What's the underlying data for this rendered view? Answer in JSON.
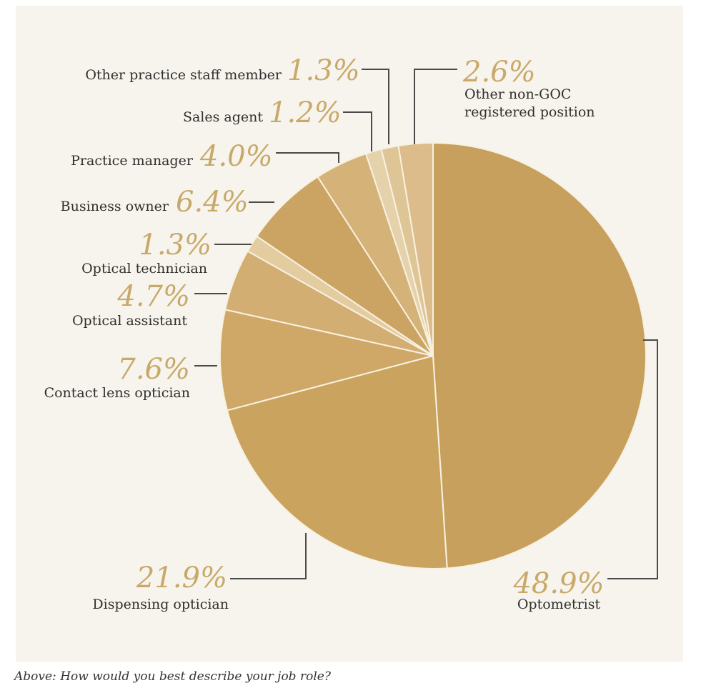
{
  "chart_data": {
    "type": "pie",
    "title": "",
    "slices": [
      {
        "label": "Optometrist",
        "value": 48.9,
        "value_label": "48.9%",
        "color": "#c6a05c"
      },
      {
        "label": "Dispensing optician",
        "value": 21.9,
        "value_label": "21.9%",
        "color": "#caa35f"
      },
      {
        "label": "Contact lens optician",
        "value": 7.6,
        "value_label": "7.6%",
        "color": "#cfa868"
      },
      {
        "label": "Optical assistant",
        "value": 4.7,
        "value_label": "4.7%",
        "color": "#d3ae72"
      },
      {
        "label": "Optical technician",
        "value": 1.3,
        "value_label": "1.3%",
        "color": "#e2cca0"
      },
      {
        "label": "Business owner",
        "value": 6.4,
        "value_label": "6.4%",
        "color": "#cba464"
      },
      {
        "label": "Practice manager",
        "value": 4.0,
        "value_label": "4.0%",
        "color": "#d5b277"
      },
      {
        "label": "Sales agent",
        "value": 1.2,
        "value_label": "1.2%",
        "color": "#e5d2aa"
      },
      {
        "label": "Other practice staff member",
        "value": 1.3,
        "value_label": "1.3%",
        "color": "#ddc595"
      },
      {
        "label": "Other non-GOC registered position",
        "label_lines": [
          "Other non-GOC",
          "registered position"
        ],
        "value": 2.6,
        "value_label": "2.6%",
        "color": "#dcbc8a"
      }
    ]
  },
  "caption": "Above: How would you best describe your job role?"
}
